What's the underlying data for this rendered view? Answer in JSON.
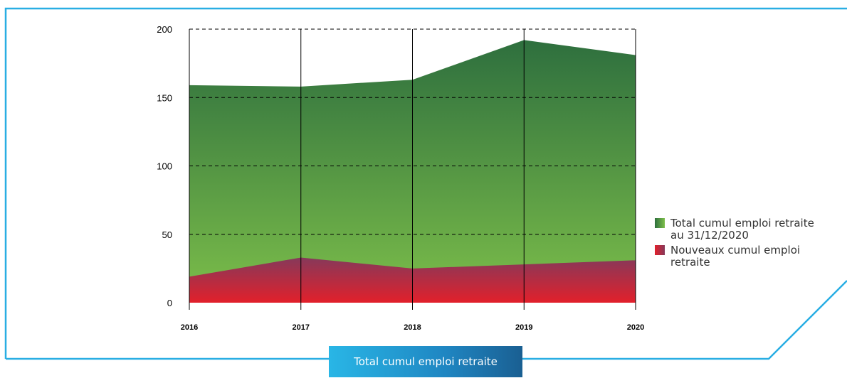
{
  "caption": "Total cumul emploi retraite",
  "colors": {
    "frame": "#29aee3",
    "green_top": "#2e6f3e",
    "green_bottom": "#7dbf4a",
    "red_top": "#8a3a55",
    "red_bottom": "#e2202b"
  },
  "chart_data": {
    "type": "area",
    "x": [
      "2016",
      "2017",
      "2018",
      "2019",
      "2020"
    ],
    "ylim": [
      0,
      200
    ],
    "yticks": [
      "0",
      "50",
      "100",
      "150",
      "200"
    ],
    "grid": true,
    "legend_position": "right",
    "series": [
      {
        "name": "Total cumul emploi retraite au 31/12/2020",
        "values": [
          159,
          158,
          163,
          192,
          181
        ]
      },
      {
        "name": "Nouveaux cumul emploi retraite",
        "values": [
          19,
          33,
          25,
          28,
          31
        ]
      }
    ],
    "legend": [
      {
        "label_line1": "Total cumul emploi retraite",
        "label_line2": "au 31/12/2020",
        "color": "green-swatch"
      },
      {
        "label_line1": "Nouveaux cumul emploi",
        "label_line2": "retraite",
        "color": "red-swatch"
      }
    ]
  }
}
